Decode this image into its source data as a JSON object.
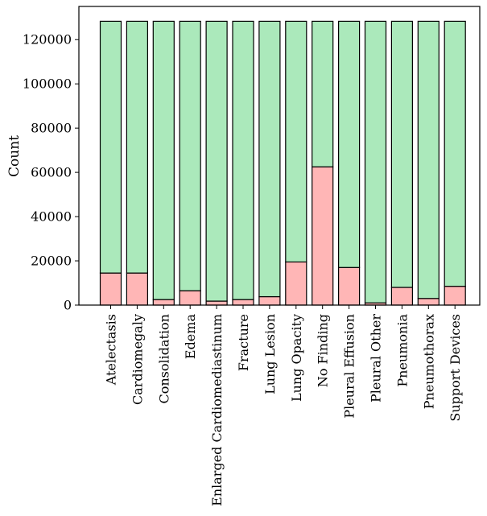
{
  "chart_data": {
    "type": "bar",
    "stacked": true,
    "title": "",
    "xlabel": "",
    "ylabel": "Count",
    "ylim": [
      0,
      135000
    ],
    "yticks": [
      0,
      20000,
      40000,
      60000,
      80000,
      100000,
      120000
    ],
    "grid": false,
    "categories": [
      "Atelectasis",
      "Cardiomegaly",
      "Consolidation",
      "Edema",
      "Enlarged Cardiomediastinum",
      "Fracture",
      "Lung Lesion",
      "Lung Opacity",
      "No Finding",
      "Pleural Effusion",
      "Pleural Other",
      "Pneumonia",
      "Pneumothorax",
      "Support Devices"
    ],
    "series": [
      {
        "color": "#ffb6b6",
        "values": [
          14500,
          14500,
          2500,
          6500,
          1800,
          2500,
          3800,
          19500,
          62500,
          17000,
          1000,
          8000,
          3000,
          8500
        ]
      },
      {
        "color": "#abe9bb",
        "values": [
          113800,
          113800,
          125800,
          121800,
          126500,
          125800,
          124500,
          108800,
          65800,
          111300,
          127300,
          120300,
          125300,
          119800
        ]
      }
    ]
  }
}
